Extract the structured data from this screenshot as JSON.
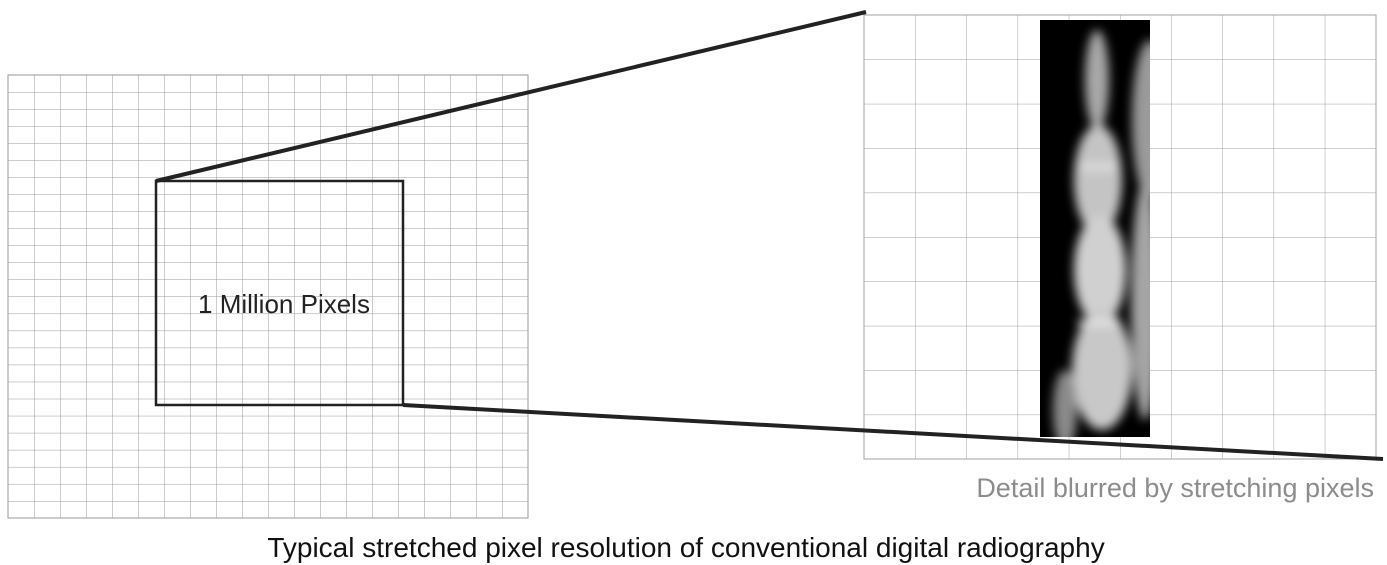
{
  "diagram": {
    "box_label": "1 Million Pixels",
    "detail_caption": "Detail blurred by stretching pixels",
    "caption": "Typical stretched pixel resolution of conventional digital radiography"
  }
}
